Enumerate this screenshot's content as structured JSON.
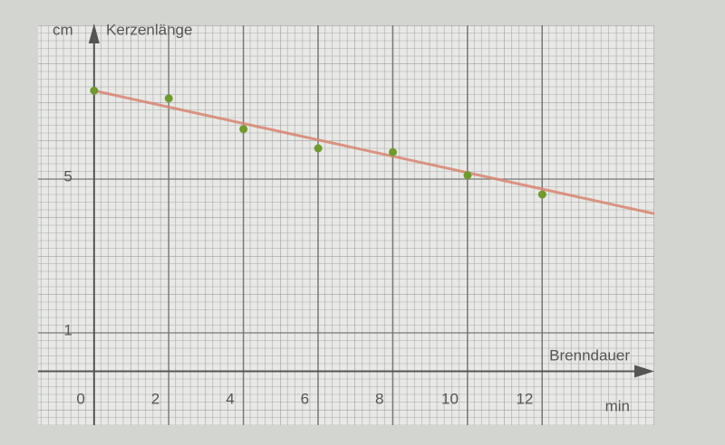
{
  "chart_data": {
    "type": "scatter",
    "y_label_unit": "cm",
    "y_label": "Kerzenlänge",
    "x_label": "Brenndauer",
    "x_label_unit": "min",
    "x": [
      0,
      2,
      4,
      6,
      8,
      10,
      12
    ],
    "series": [
      {
        "color": "#6f9a2c",
        "values": [
          7.3,
          7.1,
          6.3,
          5.8,
          5.7,
          5.1,
          4.6
        ]
      }
    ],
    "trend_line": {
      "color": "#d98470",
      "x": [
        0,
        15
      ],
      "values": [
        7.3,
        4.1
      ]
    },
    "xlim": [
      -1.5,
      15
    ],
    "ylim": [
      -1.4,
      9.0
    ],
    "xticks": [
      0,
      2,
      4,
      6,
      8,
      10,
      12
    ],
    "yticks": [
      1,
      5
    ],
    "grid": true
  }
}
